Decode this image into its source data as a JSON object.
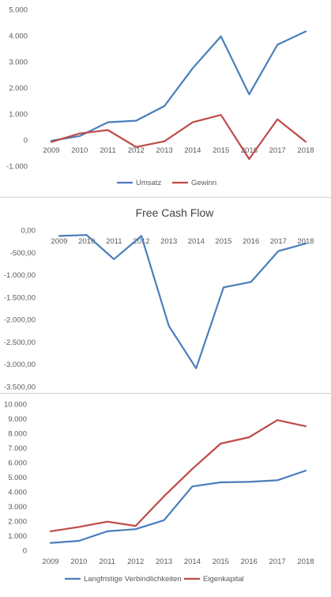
{
  "chart_data": [
    {
      "type": "line",
      "title": "",
      "categories": [
        "2009",
        "2010",
        "2011",
        "2012",
        "2013",
        "2014",
        "2015",
        "2016",
        "2017",
        "2018"
      ],
      "ylim": [
        -1000,
        5000
      ],
      "yticks": [
        -1000,
        0,
        1000,
        2000,
        3000,
        4000,
        5000
      ],
      "ytick_labels": [
        "-1.000",
        "0",
        "1.000",
        "2.000",
        "3.000",
        "4.000",
        "5.000"
      ],
      "grid": false,
      "legend_position": "bottom",
      "series": [
        {
          "name": "Umsatz",
          "color": "#4a7ebb",
          "values": [
            -30,
            150,
            680,
            740,
            1300,
            2750,
            3970,
            1750,
            3650,
            4160
          ]
        },
        {
          "name": "Gewinn",
          "color": "#be4b48",
          "values": [
            -80,
            250,
            380,
            -270,
            -50,
            680,
            960,
            -730,
            790,
            -70
          ]
        }
      ]
    },
    {
      "type": "line",
      "title": "Free Cash Flow",
      "categories": [
        "2009",
        "2010",
        "2011",
        "2012",
        "2013",
        "2014",
        "2015",
        "2016",
        "2017",
        "2018"
      ],
      "ylim": [
        -3500,
        0
      ],
      "yticks": [
        -3500,
        -3000,
        -2500,
        -2000,
        -1500,
        -1000,
        -500,
        0
      ],
      "ytick_labels": [
        "-3.500,00",
        "-3.000,00",
        "-2.500,00",
        "-2.000,00",
        "-1.500,00",
        "-1.000,00",
        "-500,00",
        "0,00"
      ],
      "grid": false,
      "legend_position": "none",
      "series": [
        {
          "name": "",
          "color": "#4a7ebb",
          "values": [
            -130,
            -110,
            -650,
            -130,
            -2140,
            -3090,
            -1280,
            -1160,
            -470,
            -300
          ]
        }
      ]
    },
    {
      "type": "line",
      "title": "",
      "categories": [
        "2009",
        "2010",
        "2011",
        "2012",
        "2013",
        "2014",
        "2015",
        "2016",
        "2017",
        "2018"
      ],
      "ylim": [
        0,
        10000
      ],
      "yticks": [
        0,
        1000,
        2000,
        3000,
        4000,
        5000,
        6000,
        7000,
        8000,
        9000,
        10000
      ],
      "ytick_labels": [
        "0",
        "1.000",
        "2.000",
        "3.000",
        "4.000",
        "5.000",
        "6.000",
        "7.000",
        "8.000",
        "9.000",
        "10.000"
      ],
      "grid": false,
      "legend_position": "bottom",
      "series": [
        {
          "name": "Langfristige Verbindlichkeiten",
          "color": "#4a7ebb",
          "values": [
            510,
            650,
            1300,
            1450,
            2060,
            4370,
            4650,
            4680,
            4790,
            5450
          ]
        },
        {
          "name": "Eigenkapital",
          "color": "#be4b48",
          "values": [
            1300,
            1600,
            1960,
            1670,
            3700,
            5560,
            7300,
            7730,
            8900,
            8480
          ]
        }
      ]
    }
  ]
}
